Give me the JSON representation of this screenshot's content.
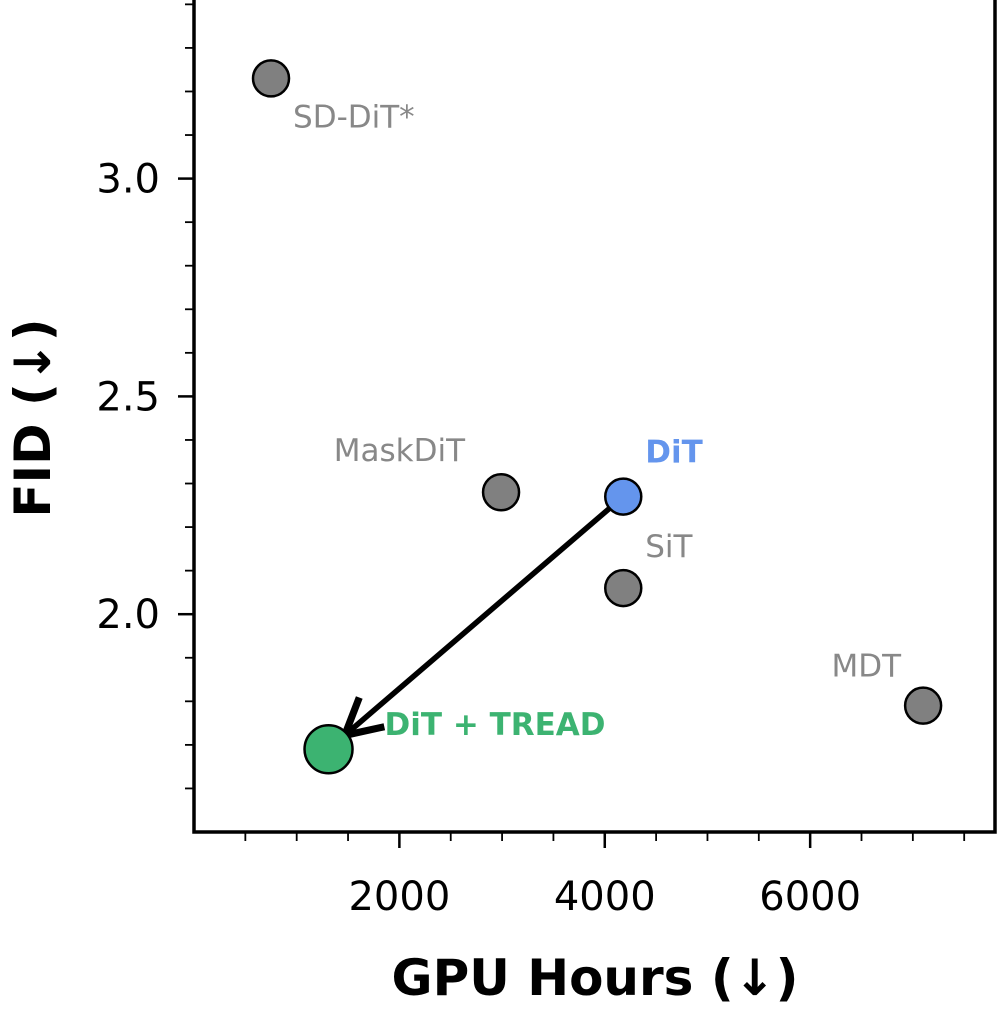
{
  "chart_data": {
    "type": "scatter",
    "title": "",
    "xlabel": "GPU Hours (↓)",
    "ylabel": "FID (↓)",
    "xlim": [
      0,
      7800
    ],
    "ylim": [
      1.5,
      3.41
    ],
    "x_ticks": [
      2000,
      4000,
      6000
    ],
    "x_tick_labels": [
      "2000",
      "4000",
      "6000"
    ],
    "y_ticks": [
      2.0,
      2.5,
      3.0
    ],
    "y_tick_labels": [
      "2.0",
      "2.5",
      "3.0"
    ],
    "grid": false,
    "points": [
      {
        "label": "SD-DiT*",
        "x": 750,
        "y": 3.23,
        "color": "#808080",
        "text_color": "#888888",
        "bold": false
      },
      {
        "label": "MaskDiT",
        "x": 2990,
        "y": 2.28,
        "color": "#808080",
        "text_color": "#888888",
        "bold": false
      },
      {
        "label": "DiT",
        "x": 4180,
        "y": 2.27,
        "color": "#6495ED",
        "text_color": "#6495ED",
        "bold": true
      },
      {
        "label": "SiT",
        "x": 4180,
        "y": 2.06,
        "color": "#808080",
        "text_color": "#888888",
        "bold": false
      },
      {
        "label": "MDT",
        "x": 7100,
        "y": 1.79,
        "color": "#808080",
        "text_color": "#888888",
        "bold": false
      },
      {
        "label": "DiT + TREAD",
        "x": 1310,
        "y": 1.69,
        "color": "#3CB371",
        "text_color": "#3CB371",
        "bold": true
      }
    ],
    "arrow": {
      "from": "DiT",
      "to": "DiT + TREAD",
      "color": "#000000"
    }
  }
}
